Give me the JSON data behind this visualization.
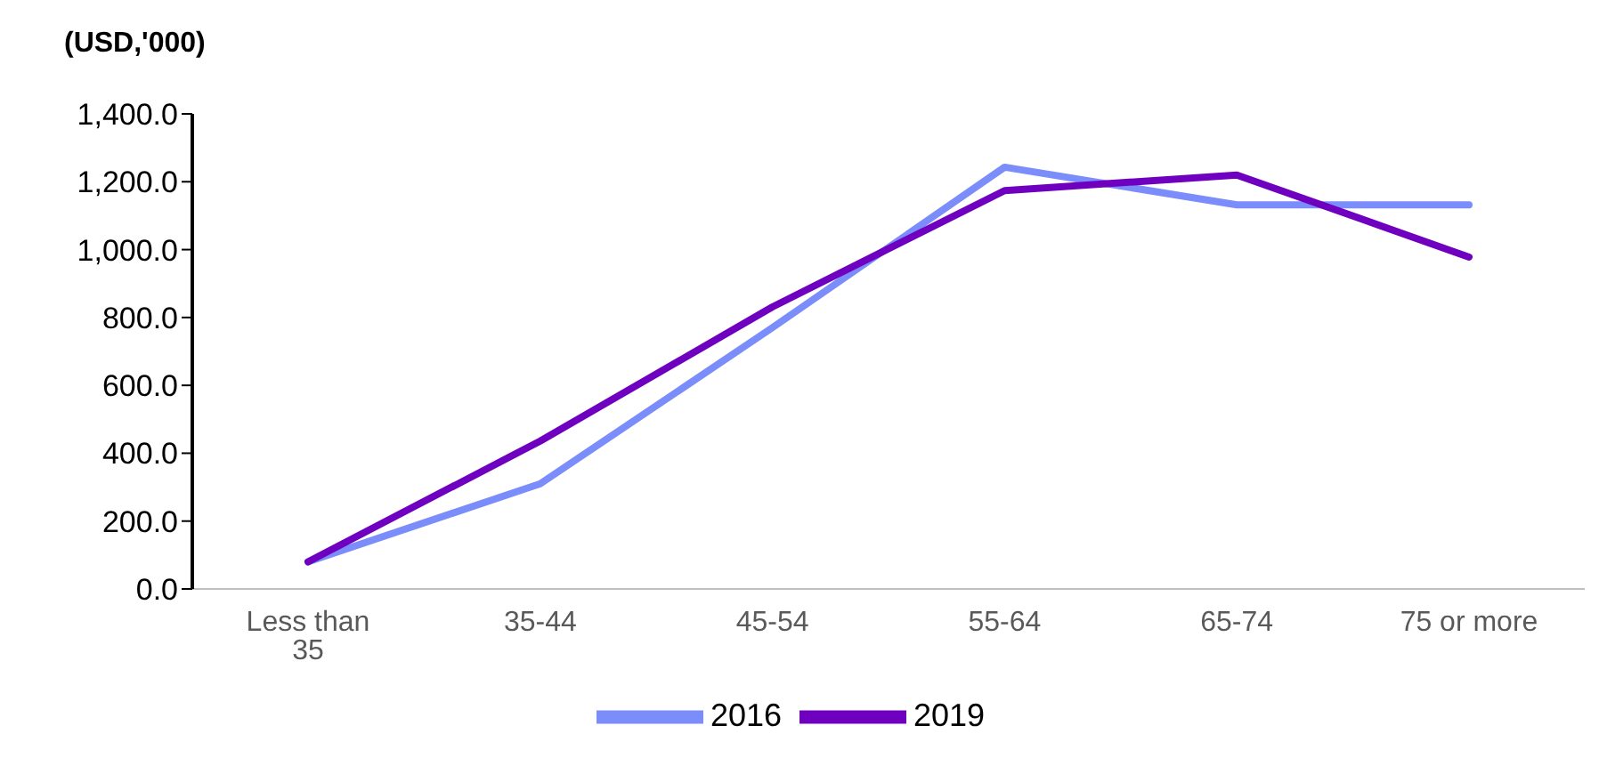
{
  "chart_data": {
    "type": "line",
    "ylabel": "(USD,'000)",
    "categories": [
      "Less than 35",
      "35-44",
      "45-54",
      "55-64",
      "65-74",
      "75 or more"
    ],
    "series": [
      {
        "name": "2016",
        "color": "#7b8cfb",
        "values": [
          80,
          310,
          770,
          1243,
          1132,
          1132
        ]
      },
      {
        "name": "2019",
        "color": "#7000c0",
        "values": [
          80,
          436,
          831,
          1174,
          1220,
          978
        ]
      }
    ],
    "ylim": [
      0,
      1400
    ],
    "yticks": [
      {
        "value": 0,
        "label": "0.0"
      },
      {
        "value": 200,
        "label": "200.0"
      },
      {
        "value": 400,
        "label": "400.0"
      },
      {
        "value": 600,
        "label": "600.0"
      },
      {
        "value": 800,
        "label": "800.0"
      },
      {
        "value": 1000,
        "label": "1,000.0"
      },
      {
        "value": 1200,
        "label": "1,200.0"
      },
      {
        "value": 1400,
        "label": "1,400.0"
      }
    ],
    "grid": false,
    "legend": "bottom",
    "marker": "none",
    "line_style": "solid"
  }
}
